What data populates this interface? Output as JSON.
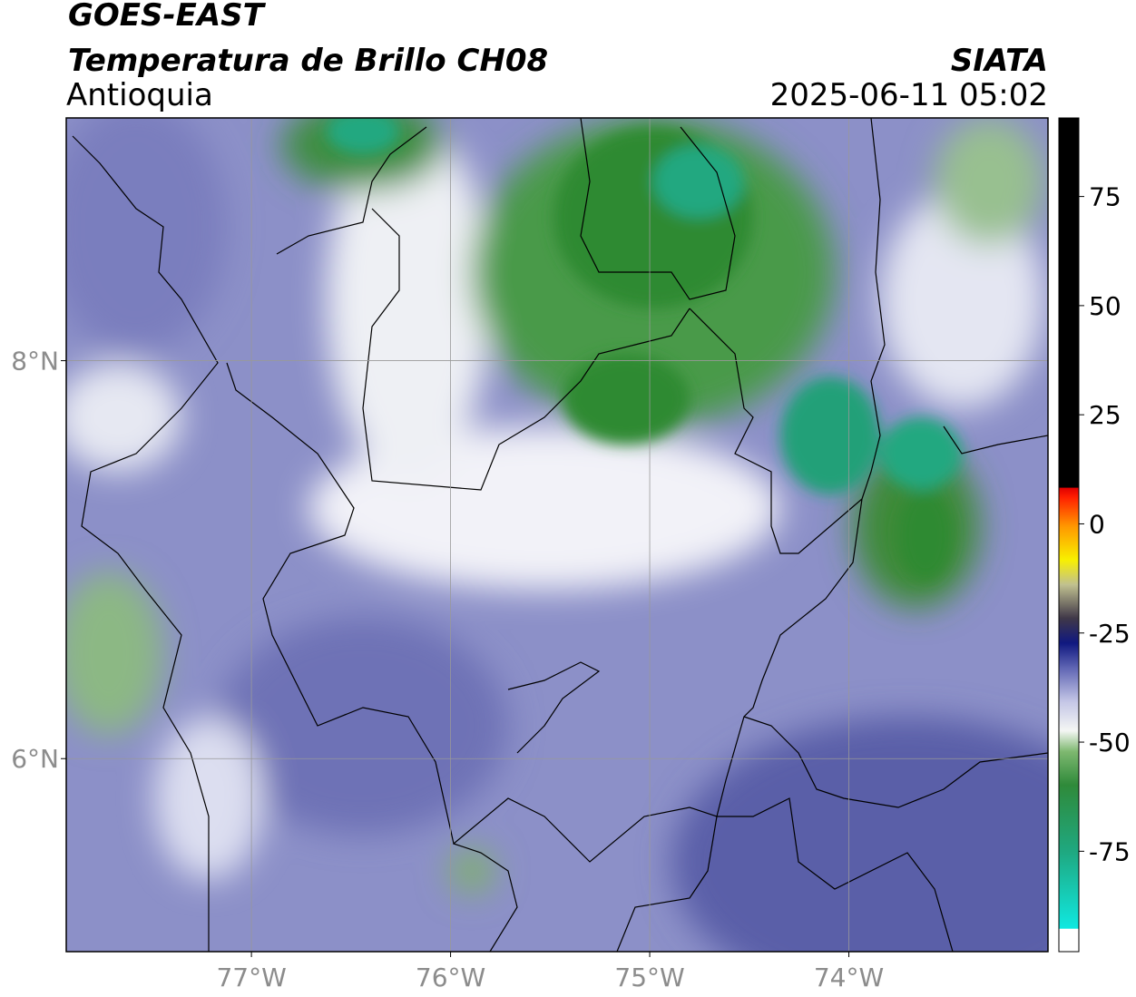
{
  "header": {
    "title": "GOES-EAST",
    "subtitle": "Temperatura de Brillo CH08",
    "region": "Antioquia",
    "source": "SIATA",
    "timestamp": "2025-06-11 05:02"
  },
  "map": {
    "xlim": [
      -77.93,
      -73.0
    ],
    "ylim": [
      5.03,
      9.22
    ],
    "xticks": [
      {
        "value": -77,
        "label": "77°W"
      },
      {
        "value": -76,
        "label": "76°W"
      },
      {
        "value": -75,
        "label": "75°W"
      },
      {
        "value": -74,
        "label": "74°W"
      }
    ],
    "yticks": [
      {
        "value": 6,
        "label": "6°N"
      },
      {
        "value": 8,
        "label": "8°N"
      }
    ],
    "grid": true
  },
  "colorbar": {
    "range": [
      -98,
      93
    ],
    "ticks": [
      75,
      50,
      25,
      0,
      -25,
      -50,
      -75
    ]
  }
}
